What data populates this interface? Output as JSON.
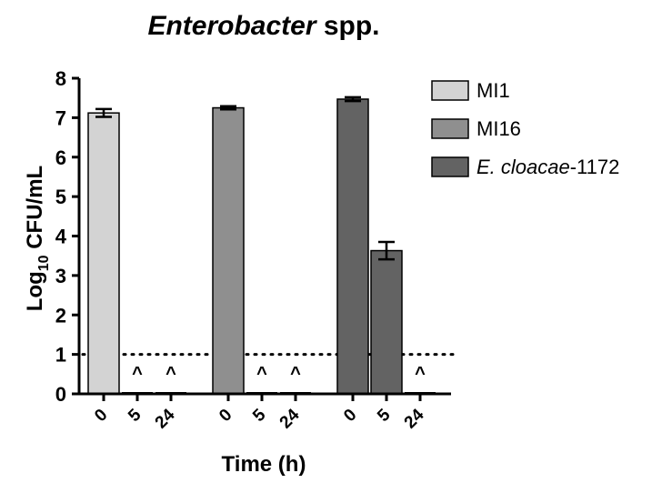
{
  "chart_data": {
    "type": "bar",
    "title_italic": "Enterobacter",
    "title_rest": " spp.",
    "ylabel_main": "Log",
    "ylabel_sub": "10",
    "ylabel_rest": " CFU/mL",
    "xlabel": "Time (h)",
    "ylim": [
      0,
      8
    ],
    "yticks": [
      "0",
      "1",
      "2",
      "3",
      "4",
      "5",
      "6",
      "7",
      "8"
    ],
    "detection_limit": 1,
    "groups": [
      {
        "name": "MI1",
        "color": "#d3d3d3",
        "bars": [
          {
            "time": "0",
            "value": 7.12,
            "err": 0.1,
            "marker": ""
          },
          {
            "time": "5",
            "value": 0,
            "err": 0,
            "marker": "^"
          },
          {
            "time": "24",
            "value": 0,
            "err": 0,
            "marker": "^"
          }
        ]
      },
      {
        "name": "MI16",
        "color": "#8f8f8f",
        "bars": [
          {
            "time": "0",
            "value": 7.25,
            "err": 0.04,
            "marker": ""
          },
          {
            "time": "5",
            "value": 0,
            "err": 0,
            "marker": "^"
          },
          {
            "time": "24",
            "value": 0,
            "err": 0,
            "marker": "^"
          }
        ]
      },
      {
        "name_italic": "E. cloacae",
        "name_rest": "-1172",
        "color": "#636363",
        "bars": [
          {
            "time": "0",
            "value": 7.47,
            "err": 0.05,
            "marker": ""
          },
          {
            "time": "5",
            "value": 3.63,
            "err": 0.22,
            "marker": ""
          },
          {
            "time": "24",
            "value": 0,
            "err": 0,
            "marker": "^"
          }
        ]
      }
    ]
  }
}
